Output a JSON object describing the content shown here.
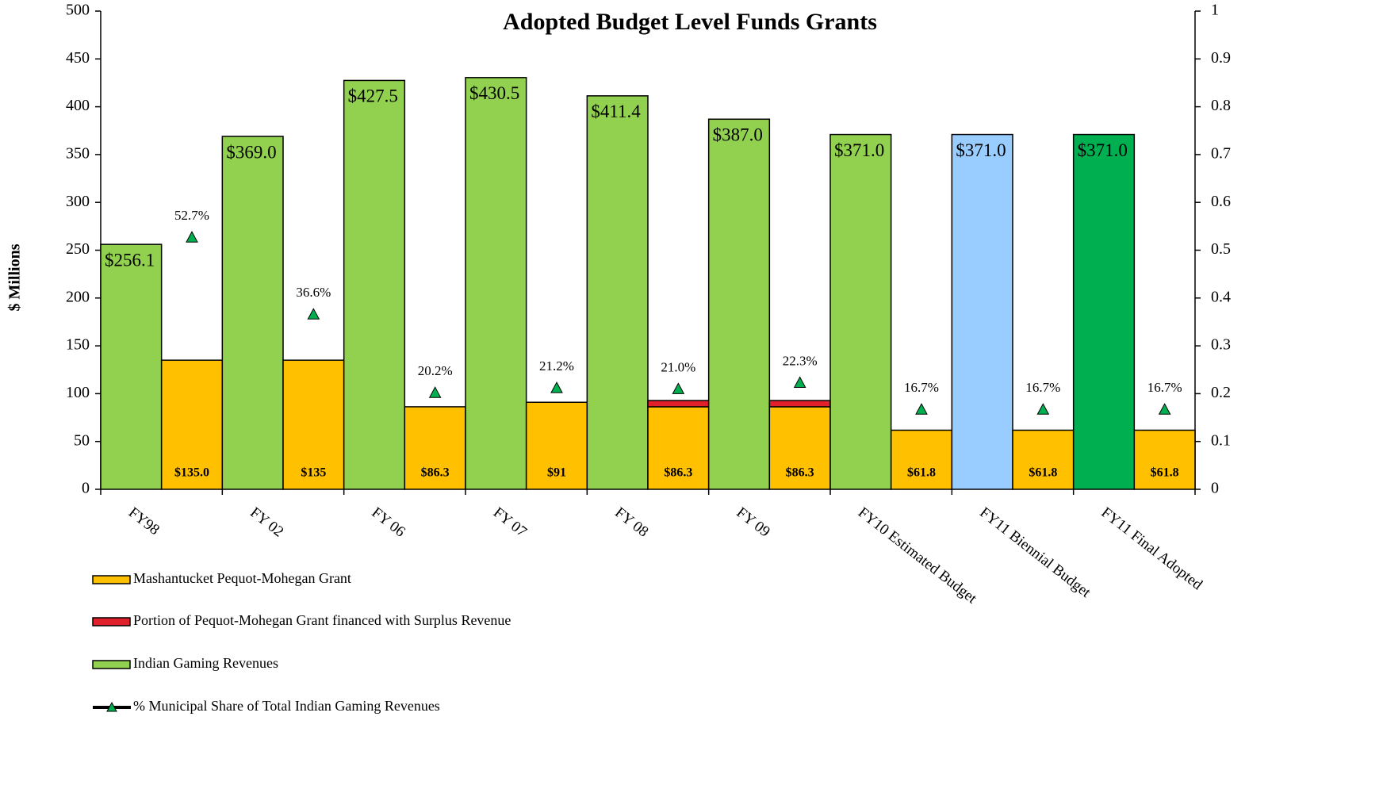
{
  "chart_data": {
    "type": "bar",
    "title": "Adopted Budget Level Funds Grants",
    "ylabel": "$ Millions",
    "categories": [
      "FY98",
      "FY 02",
      "FY 06",
      "FY 07",
      "FY 08",
      "FY 09",
      "FY10 Estimated Budget",
      "FY11 Biennial Budget",
      "FY11 Final Adopted"
    ],
    "series": [
      {
        "name": "Mashantucket Pequot-Mohegan Grant",
        "color": "#ffc000",
        "values": [
          135.0,
          135,
          86.3,
          91,
          86.3,
          86.3,
          61.8,
          61.8,
          61.8
        ],
        "value_labels": [
          "$135.0",
          "$135",
          "$86.3",
          "$91",
          "$86.3",
          "$86.3",
          "$61.8",
          "$61.8",
          "$61.8"
        ]
      },
      {
        "name": "Portion of Pequot-Mohegan Grant financed with Surplus Revenue",
        "color": "#e0202a",
        "values": [
          null,
          null,
          null,
          null,
          6.5,
          6.5,
          null,
          null,
          null
        ]
      },
      {
        "name": "Indian Gaming Revenues",
        "color": "#92d050",
        "colors": [
          "#92d050",
          "#92d050",
          "#92d050",
          "#92d050",
          "#92d050",
          "#92d050",
          "#92d050",
          "#99ccff",
          "#00b050"
        ],
        "values": [
          256.1,
          369.0,
          427.5,
          430.5,
          411.4,
          387.0,
          371.0,
          371.0,
          371.0
        ],
        "value_labels": [
          "$256.1",
          "$369.0",
          "$427.5",
          "$430.5",
          "$411.4",
          "$387.0",
          "$371.0",
          "$371.0",
          "$371.0"
        ]
      },
      {
        "name": "% Municipal Share of Total Indian Gaming Revenues",
        "color": "#000000",
        "marker_color": "#00b050",
        "axis": "y2",
        "values": [
          0.527,
          0.366,
          0.202,
          0.212,
          0.21,
          0.223,
          0.167,
          0.167,
          0.167
        ],
        "value_labels": [
          "52.7%",
          "36.6%",
          "20.2%",
          "21.2%",
          "21.0%",
          "22.3%",
          "16.7%",
          "16.7%",
          "16.7%"
        ]
      }
    ],
    "ylim": [
      0,
      500
    ],
    "yticks": [
      0,
      50,
      100,
      150,
      200,
      250,
      300,
      350,
      400,
      450,
      500
    ],
    "y2lim": [
      0,
      1
    ],
    "y2ticks": [
      0,
      0.1,
      0.2,
      0.3,
      0.4,
      0.5,
      0.6,
      0.7,
      0.8,
      0.9,
      1
    ]
  }
}
